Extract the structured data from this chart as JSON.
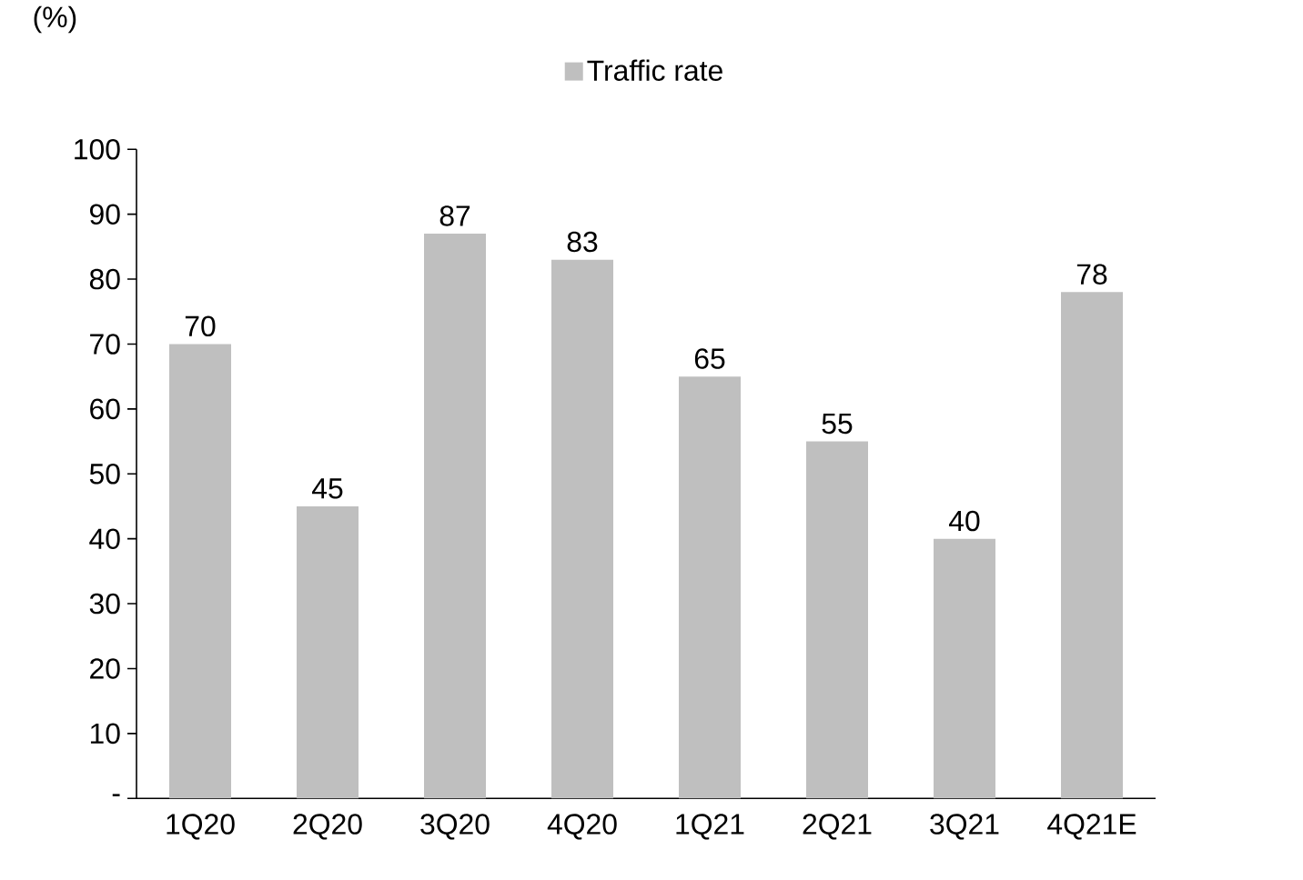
{
  "chart_data": {
    "type": "bar",
    "ylabel": "(%)",
    "categories": [
      "1Q20",
      "2Q20",
      "3Q20",
      "4Q20",
      "1Q21",
      "2Q21",
      "3Q21",
      "4Q21E"
    ],
    "series": [
      {
        "name": "Traffic rate",
        "color": "#bfbfbf",
        "values": [
          70,
          45,
          87,
          83,
          65,
          55,
          40,
          78
        ]
      }
    ],
    "ylim": [
      0,
      100
    ],
    "yticks": [
      {
        "value": 0,
        "label": "-"
      },
      10,
      20,
      30,
      40,
      50,
      60,
      70,
      80,
      90,
      100
    ],
    "data_labels": true,
    "legend": "top",
    "grid": false
  }
}
